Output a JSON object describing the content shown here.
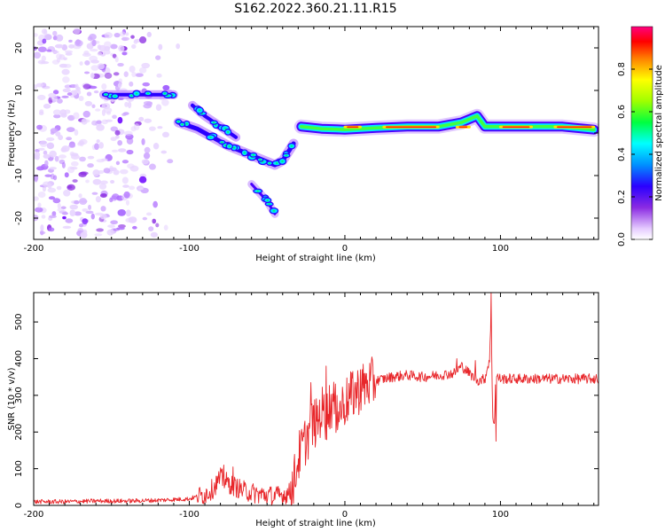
{
  "title": "S162.2022.360.21.11.R15",
  "chart_data": [
    {
      "type": "heatmap",
      "name": "spectrogram",
      "xlabel": "Height of straight line (km)",
      "ylabel": "Frequency (Hz)",
      "xlim": [
        -200,
        163
      ],
      "ylim": [
        -25,
        25
      ],
      "xticks": [
        -200,
        -100,
        0,
        100
      ],
      "yticks": [
        -20,
        -10,
        0,
        10,
        20
      ],
      "colorbar": {
        "label": "Normalized spectral amplitude",
        "range": [
          0,
          1
        ],
        "ticks": [
          0.0,
          0.2,
          0.4,
          0.6,
          0.8
        ],
        "tick_labels": [
          "0.0",
          "0.2",
          "0.4",
          "0.6",
          "0.8"
        ],
        "colormap": [
          "#ffffff",
          "#d9b8ff",
          "#8a2be2",
          "#2a00ff",
          "#00ffff",
          "#00ff00",
          "#ffff00",
          "#ff8000",
          "#ff0000",
          "#ff007f"
        ]
      },
      "features": [
        {
          "name": "noise-scatter",
          "x_range": [
            -200,
            -105
          ],
          "freq_range": [
            -24,
            24
          ],
          "amplitude": 0.15
        },
        {
          "name": "branch-10hz",
          "x": [
            -155,
            -140,
            -125,
            -110
          ],
          "freq": [
            9,
            9,
            9,
            9
          ],
          "amplitude": 0.25
        },
        {
          "name": "descending-main",
          "x": [
            -107,
            -95,
            -85,
            -75,
            -65,
            -55,
            -45,
            -40,
            -33
          ],
          "freq": [
            2.5,
            1.0,
            -1.0,
            -3.0,
            -4.5,
            -6.0,
            -7.5,
            -6.5,
            -2.5
          ],
          "amplitude": 0.3
        },
        {
          "name": "upper-descent",
          "x": [
            -98,
            -90,
            -80,
            -70
          ],
          "freq": [
            6.5,
            4,
            1.5,
            -1
          ],
          "amplitude": 0.2
        },
        {
          "name": "lower-branch",
          "x": [
            -60,
            -50,
            -45
          ],
          "freq": [
            -12,
            -16,
            -19
          ],
          "amplitude": 0.15
        },
        {
          "name": "carrier-line",
          "x": [
            -28,
            -15,
            0,
            20,
            40,
            60,
            75,
            85,
            90,
            100,
            120,
            140,
            160
          ],
          "freq": [
            1.5,
            1.0,
            0.8,
            1.2,
            1.5,
            1.5,
            2.5,
            4.0,
            1.5,
            1.5,
            1.5,
            1.5,
            0.8
          ],
          "amplitude": 0.85
        }
      ]
    },
    {
      "type": "line",
      "name": "snr",
      "xlabel": "Height of straight line (km)",
      "ylabel": "SNR (10 * v/v)",
      "xlim": [
        -200,
        163
      ],
      "ylim": [
        0,
        580
      ],
      "xticks": [
        -200,
        -100,
        0,
        100
      ],
      "yticks": [
        0,
        100,
        200,
        300,
        400,
        500
      ],
      "color": "#e8262a",
      "series": [
        {
          "name": "SNR",
          "x": [
            -200,
            -180,
            -160,
            -140,
            -120,
            -100,
            -90,
            -85,
            -80,
            -75,
            -70,
            -65,
            -60,
            -55,
            -50,
            -45,
            -40,
            -35,
            -32,
            -30,
            -28,
            -26,
            -24,
            -22,
            -20,
            -18,
            -16,
            -14,
            -12,
            -10,
            -8,
            -6,
            -4,
            -2,
            0,
            5,
            10,
            15,
            20,
            25,
            30,
            40,
            50,
            60,
            70,
            75,
            80,
            85,
            90,
            93,
            94,
            95,
            96,
            97,
            98,
            100,
            110,
            120,
            130,
            140,
            150,
            160,
            163
          ],
          "y": [
            10,
            10,
            12,
            12,
            14,
            18,
            30,
            45,
            75,
            60,
            50,
            40,
            35,
            30,
            28,
            25,
            28,
            35,
            80,
            130,
            150,
            170,
            190,
            210,
            230,
            220,
            250,
            260,
            240,
            270,
            280,
            260,
            250,
            270,
            280,
            300,
            320,
            330,
            340,
            345,
            350,
            355,
            350,
            355,
            360,
            380,
            360,
            340,
            345,
            400,
            520,
            250,
            210,
            360,
            350,
            345,
            345,
            345,
            345,
            345,
            345,
            345,
            345
          ],
          "spikes": [
            [
              -78,
              110
            ],
            [
              -72,
              105
            ],
            [
              -22,
              335
            ],
            [
              -12,
              380
            ],
            [
              -5,
              300
            ],
            [
              5,
              365
            ],
            [
              10,
              370
            ],
            [
              72,
              400
            ],
            [
              84,
              395
            ],
            [
              94,
              580
            ],
            [
              97,
              175
            ]
          ]
        }
      ]
    }
  ]
}
